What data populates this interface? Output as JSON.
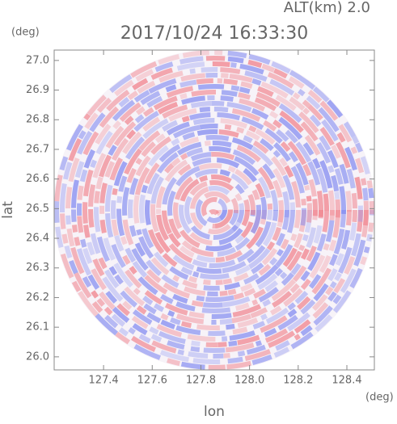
{
  "chart_data": {
    "type": "radar-image",
    "title": "2017/10/24 16:33:30",
    "subtitle": "ALT(km) 2.0",
    "x_label": "lon",
    "y_label": "lat",
    "x_unit": "(deg)",
    "y_unit": "(deg)",
    "xlim": [
      127.197,
      128.513
    ],
    "ylim": [
      25.956,
      27.035
    ],
    "xticks": [
      127.4,
      127.6,
      127.8,
      {
        "value": 128,
        "label": "128.0"
      },
      128.2,
      128.4
    ],
    "yticks": [
      {
        "value": 26,
        "label": "26.0"
      },
      26.1,
      26.2,
      26.3,
      26.4,
      26.5,
      26.6,
      26.7,
      26.8,
      26.9,
      {
        "value": 27,
        "label": "27.0"
      }
    ]
  }
}
